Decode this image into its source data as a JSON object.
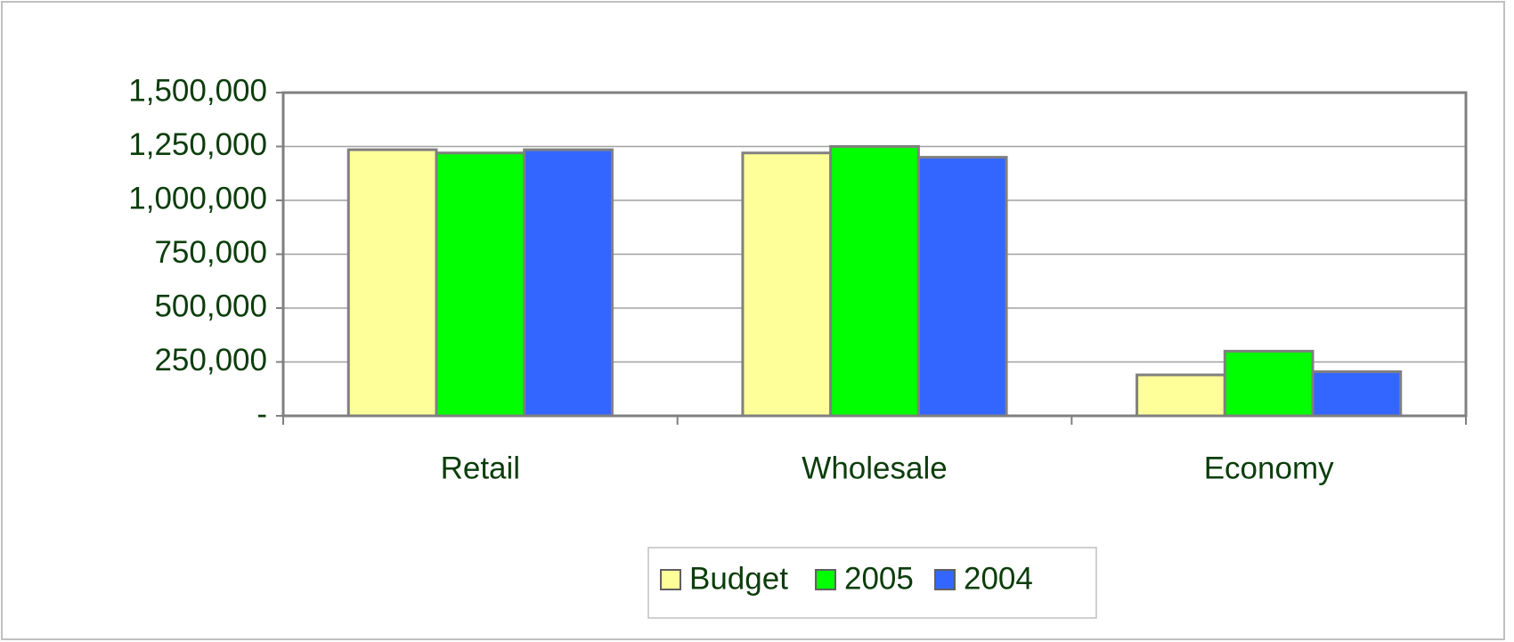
{
  "chart_data": {
    "type": "bar",
    "categories": [
      "Retail",
      "Wholesale",
      "Economy"
    ],
    "series": [
      {
        "name": "Budget",
        "color": "#ffff99",
        "values": [
          1235000,
          1220000,
          190000
        ]
      },
      {
        "name": "2005",
        "color": "#00ff00",
        "values": [
          1220000,
          1250000,
          300000
        ]
      },
      {
        "name": "2004",
        "color": "#3366ff",
        "values": [
          1235000,
          1200000,
          205000
        ]
      }
    ],
    "ylim": [
      0,
      1500000
    ],
    "yticks": [
      {
        "value": 0,
        "label": "-"
      },
      {
        "value": 250000,
        "label": "250,000"
      },
      {
        "value": 500000,
        "label": "500,000"
      },
      {
        "value": 750000,
        "label": "750,000"
      },
      {
        "value": 1000000,
        "label": "1,000,000"
      },
      {
        "value": 1250000,
        "label": "1,250,000"
      },
      {
        "value": 1500000,
        "label": "1,500,000"
      }
    ],
    "grid": true,
    "legend": "bottom"
  }
}
